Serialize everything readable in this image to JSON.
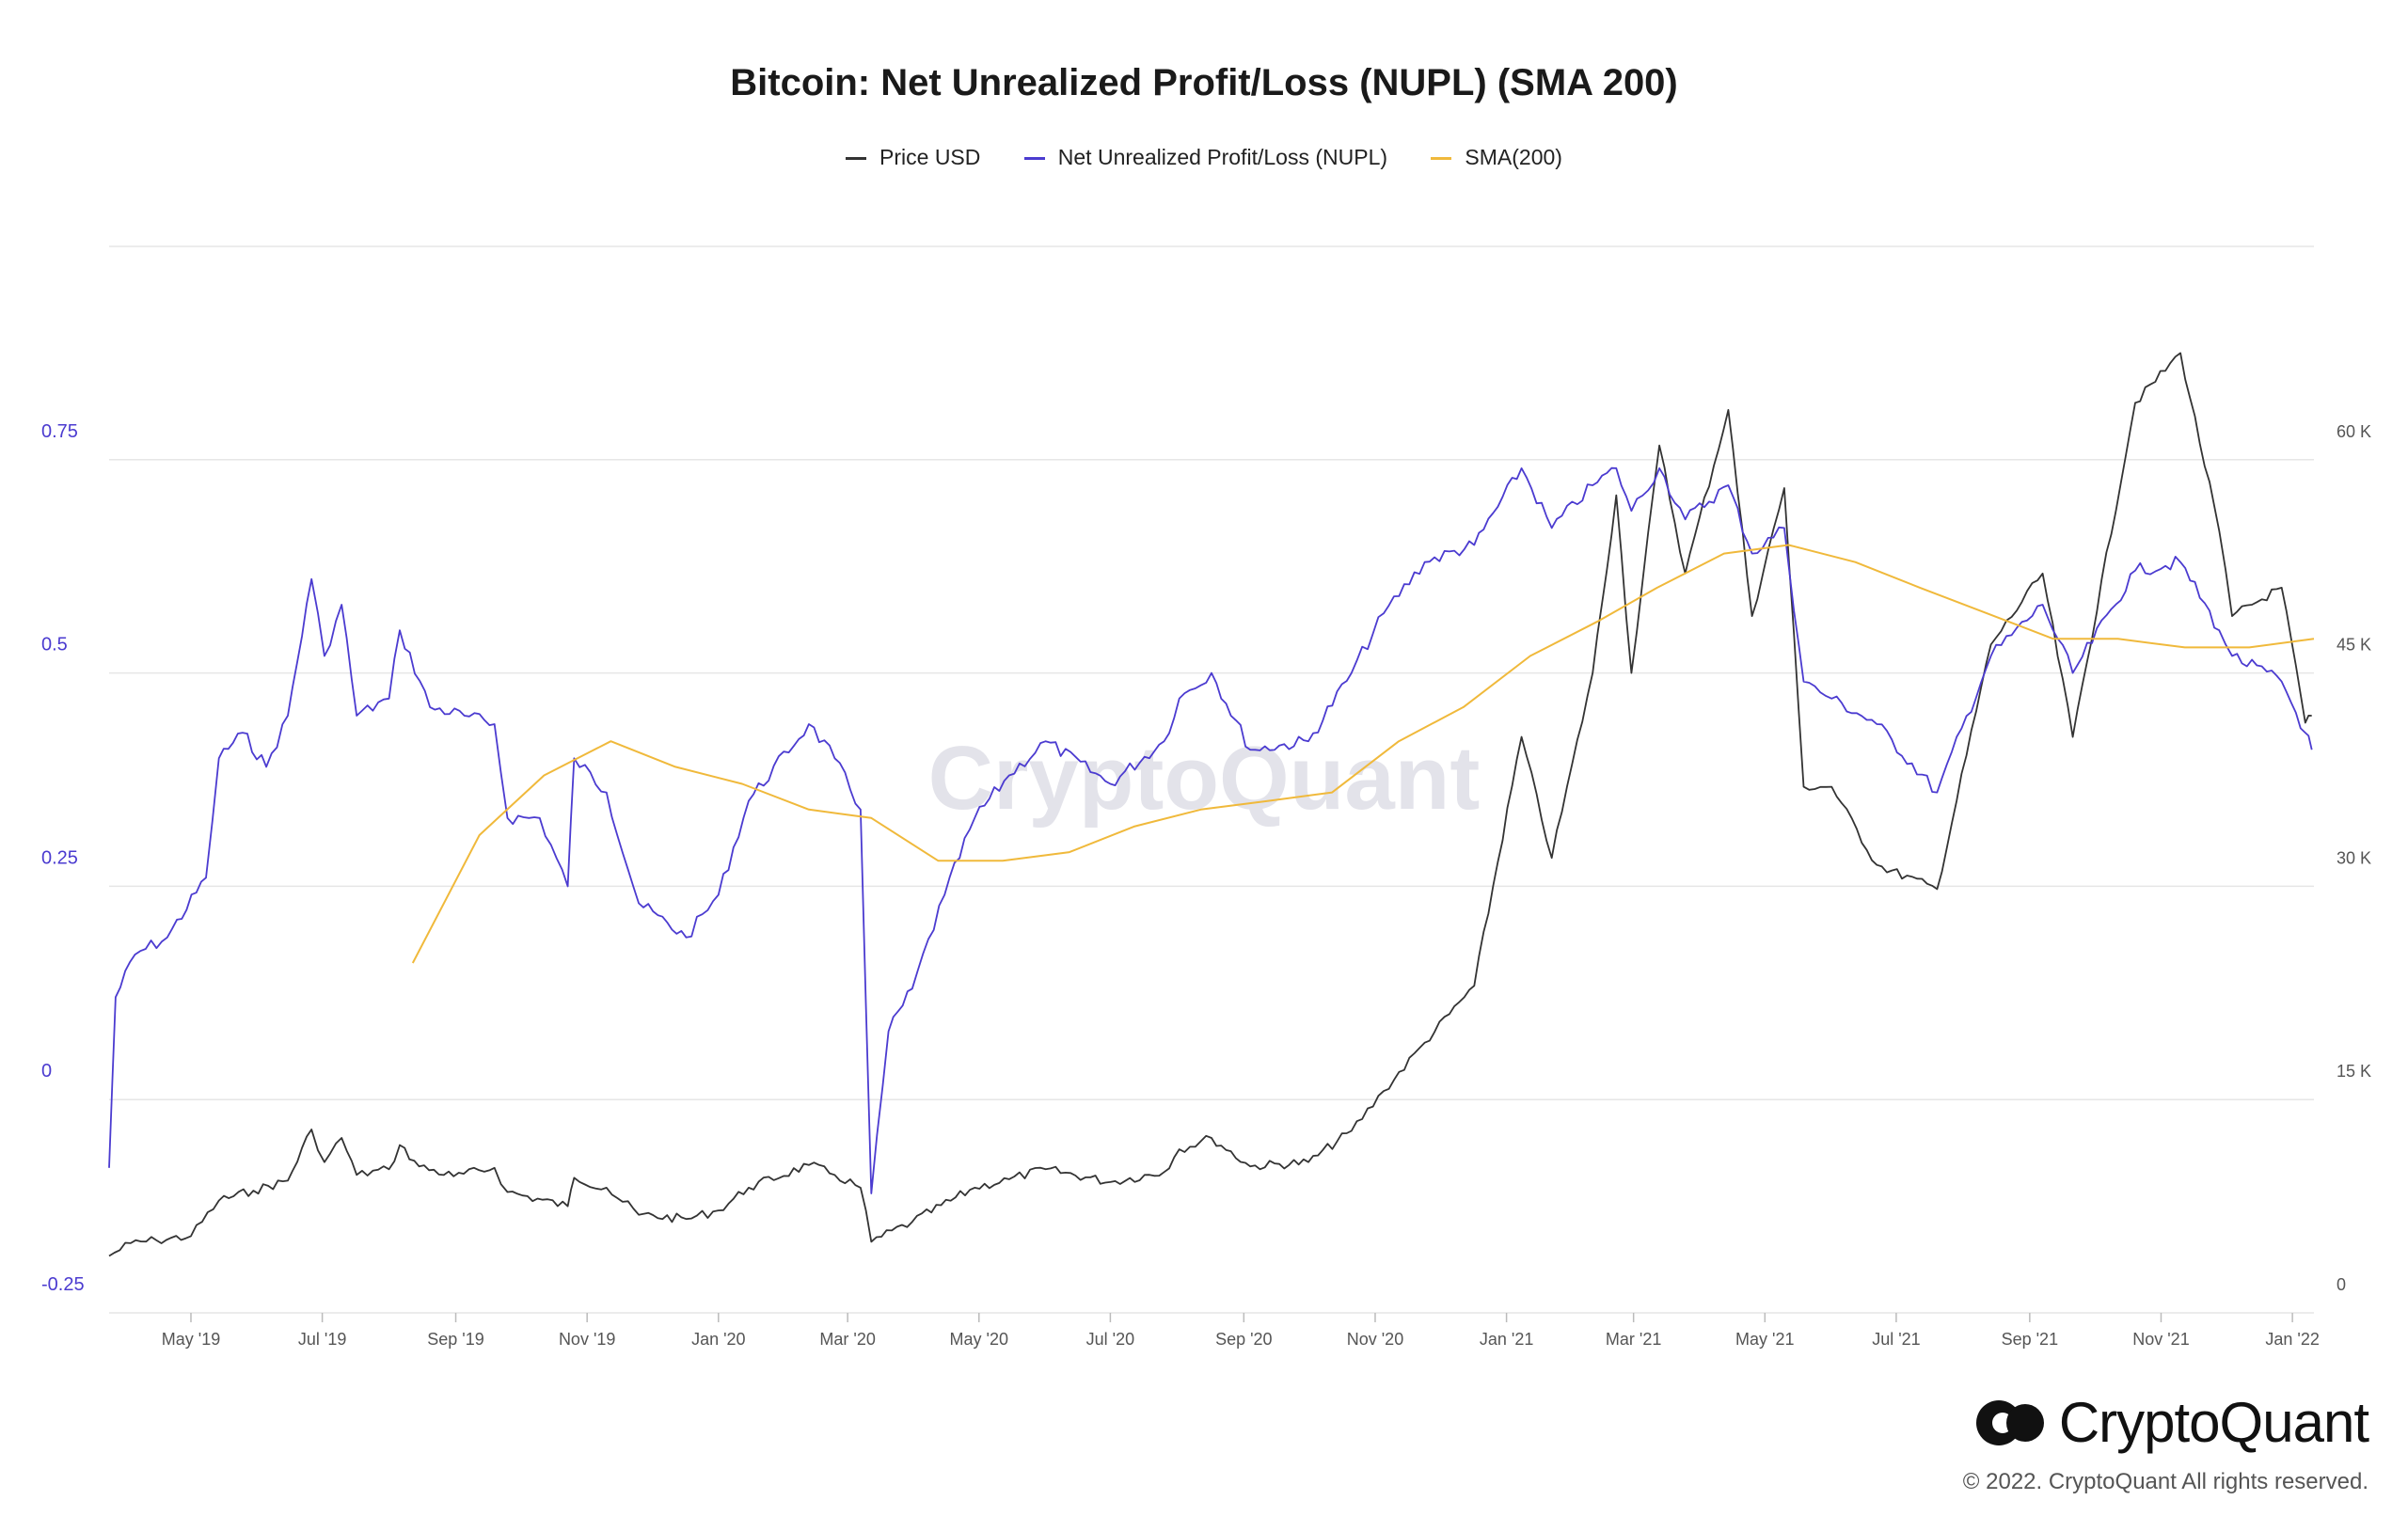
{
  "chart_data": {
    "type": "line",
    "title": "Bitcoin: Net Unrealized Profit/Loss (NUPL) (SMA 200)",
    "watermark": "CryptoQuant",
    "legend": {
      "placement": "top-center",
      "entries": [
        {
          "name": "Price USD",
          "color": "#333333"
        },
        {
          "name": "Net Unrealized Profit/Loss (NUPL)",
          "color": "#4b3bd0"
        },
        {
          "name": "SMA(200)",
          "color": "#f0b93b"
        }
      ]
    },
    "x_axis": {
      "range": [
        "2019-03-24",
        "2022-01-11"
      ],
      "ticks": [
        {
          "label": "May '19",
          "date": "2019-05-01"
        },
        {
          "label": "Jul '19",
          "date": "2019-07-01"
        },
        {
          "label": "Sep '19",
          "date": "2019-09-01"
        },
        {
          "label": "Nov '19",
          "date": "2019-11-01"
        },
        {
          "label": "Jan '20",
          "date": "2020-01-01"
        },
        {
          "label": "Mar '20",
          "date": "2020-03-01"
        },
        {
          "label": "May '20",
          "date": "2020-05-01"
        },
        {
          "label": "Jul '20",
          "date": "2020-07-01"
        },
        {
          "label": "Sep '20",
          "date": "2020-09-01"
        },
        {
          "label": "Nov '20",
          "date": "2020-11-01"
        },
        {
          "label": "Jan '21",
          "date": "2021-01-01"
        },
        {
          "label": "Mar '21",
          "date": "2021-03-01"
        },
        {
          "label": "May '21",
          "date": "2021-05-01"
        },
        {
          "label": "Jul '21",
          "date": "2021-07-01"
        },
        {
          "label": "Sep '21",
          "date": "2021-09-01"
        },
        {
          "label": "Nov '21",
          "date": "2021-11-01"
        },
        {
          "label": "Jan '22",
          "date": "2022-01-01"
        }
      ]
    },
    "y_left": {
      "range": [
        -0.25,
        1.0
      ],
      "ticks": [
        {
          "label": "0.75",
          "value": 0.75
        },
        {
          "label": "0.5",
          "value": 0.5
        },
        {
          "label": "0.25",
          "value": 0.25
        },
        {
          "label": "0",
          "value": 0
        },
        {
          "label": "-0.25",
          "value": -0.25
        }
      ]
    },
    "y_right": {
      "range": [
        0,
        75000
      ],
      "ticks": [
        {
          "label": "60 K",
          "value": 60000
        },
        {
          "label": "45 K",
          "value": 45000
        },
        {
          "label": "30 K",
          "value": 30000
        },
        {
          "label": "15 K",
          "value": 15000
        },
        {
          "label": "0",
          "value": 0
        }
      ]
    },
    "grid": true,
    "series": [
      {
        "name": "Price USD",
        "axis": "right",
        "color": "#333333",
        "points": [
          [
            "2019-03-24",
            4000
          ],
          [
            "2019-04-03",
            4900
          ],
          [
            "2019-04-15",
            5100
          ],
          [
            "2019-05-01",
            5400
          ],
          [
            "2019-05-14",
            7900
          ],
          [
            "2019-05-30",
            8600
          ],
          [
            "2019-06-15",
            9300
          ],
          [
            "2019-06-26",
            12900
          ],
          [
            "2019-07-02",
            10600
          ],
          [
            "2019-07-10",
            12300
          ],
          [
            "2019-07-17",
            9700
          ],
          [
            "2019-08-01",
            10100
          ],
          [
            "2019-08-06",
            11800
          ],
          [
            "2019-08-15",
            10300
          ],
          [
            "2019-08-31",
            9600
          ],
          [
            "2019-09-19",
            10200
          ],
          [
            "2019-09-25",
            8500
          ],
          [
            "2019-10-23",
            7500
          ],
          [
            "2019-10-26",
            9500
          ],
          [
            "2019-11-10",
            8800
          ],
          [
            "2019-11-25",
            6900
          ],
          [
            "2019-12-17",
            6600
          ],
          [
            "2020-01-01",
            7200
          ],
          [
            "2020-01-15",
            8800
          ],
          [
            "2020-02-12",
            10400
          ],
          [
            "2020-02-24",
            9700
          ],
          [
            "2020-03-07",
            8800
          ],
          [
            "2020-03-12",
            5000
          ],
          [
            "2020-03-31",
            6400
          ],
          [
            "2020-04-29",
            8800
          ],
          [
            "2020-05-15",
            9400
          ],
          [
            "2020-06-01",
            10100
          ],
          [
            "2020-07-01",
            9200
          ],
          [
            "2020-07-26",
            9900
          ],
          [
            "2020-08-02",
            11500
          ],
          [
            "2020-08-17",
            12300
          ],
          [
            "2020-09-04",
            10300
          ],
          [
            "2020-10-01",
            10600
          ],
          [
            "2020-10-21",
            12800
          ],
          [
            "2020-11-05",
            15600
          ],
          [
            "2020-11-24",
            19000
          ],
          [
            "2020-12-17",
            23000
          ],
          [
            "2021-01-08",
            40500
          ],
          [
            "2021-01-22",
            32000
          ],
          [
            "2021-02-10",
            45000
          ],
          [
            "2021-02-21",
            57500
          ],
          [
            "2021-02-28",
            45000
          ],
          [
            "2021-03-13",
            61000
          ],
          [
            "2021-03-25",
            52000
          ],
          [
            "2021-04-14",
            63500
          ],
          [
            "2021-04-25",
            49000
          ],
          [
            "2021-05-10",
            58000
          ],
          [
            "2021-05-19",
            37000
          ],
          [
            "2021-06-01",
            37000
          ],
          [
            "2021-06-22",
            31500
          ],
          [
            "2021-07-20",
            29800
          ],
          [
            "2021-08-14",
            47000
          ],
          [
            "2021-09-07",
            52000
          ],
          [
            "2021-09-21",
            40500
          ],
          [
            "2021-10-20",
            64000
          ],
          [
            "2021-11-10",
            67500
          ],
          [
            "2021-11-28",
            55000
          ],
          [
            "2021-12-04",
            49000
          ],
          [
            "2021-12-27",
            51000
          ],
          [
            "2022-01-07",
            41500
          ],
          [
            "2022-01-10",
            42000
          ]
        ]
      },
      {
        "name": "Net Unrealized Profit/Loss (NUPL)",
        "axis": "left",
        "color": "#4b3bd0",
        "points": [
          [
            "2019-03-24",
            -0.08
          ],
          [
            "2019-03-27",
            0.12
          ],
          [
            "2019-04-05",
            0.17
          ],
          [
            "2019-04-20",
            0.19
          ],
          [
            "2019-05-08",
            0.26
          ],
          [
            "2019-05-14",
            0.4
          ],
          [
            "2019-05-25",
            0.43
          ],
          [
            "2019-06-05",
            0.39
          ],
          [
            "2019-06-15",
            0.45
          ],
          [
            "2019-06-26",
            0.61
          ],
          [
            "2019-07-02",
            0.52
          ],
          [
            "2019-07-10",
            0.58
          ],
          [
            "2019-07-17",
            0.45
          ],
          [
            "2019-08-01",
            0.47
          ],
          [
            "2019-08-06",
            0.55
          ],
          [
            "2019-08-20",
            0.46
          ],
          [
            "2019-09-05",
            0.45
          ],
          [
            "2019-09-19",
            0.44
          ],
          [
            "2019-09-25",
            0.33
          ],
          [
            "2019-10-10",
            0.33
          ],
          [
            "2019-10-23",
            0.25
          ],
          [
            "2019-10-26",
            0.4
          ],
          [
            "2019-11-10",
            0.36
          ],
          [
            "2019-11-25",
            0.23
          ],
          [
            "2019-12-17",
            0.19
          ],
          [
            "2020-01-01",
            0.24
          ],
          [
            "2020-01-15",
            0.35
          ],
          [
            "2020-02-12",
            0.44
          ],
          [
            "2020-02-24",
            0.4
          ],
          [
            "2020-03-07",
            0.34
          ],
          [
            "2020-03-12",
            -0.11
          ],
          [
            "2020-03-20",
            0.08
          ],
          [
            "2020-03-31",
            0.13
          ],
          [
            "2020-04-15",
            0.24
          ],
          [
            "2020-04-29",
            0.33
          ],
          [
            "2020-05-15",
            0.38
          ],
          [
            "2020-06-01",
            0.42
          ],
          [
            "2020-07-01",
            0.37
          ],
          [
            "2020-07-26",
            0.42
          ],
          [
            "2020-08-02",
            0.47
          ],
          [
            "2020-08-17",
            0.5
          ],
          [
            "2020-09-04",
            0.41
          ],
          [
            "2020-10-01",
            0.42
          ],
          [
            "2020-10-21",
            0.5
          ],
          [
            "2020-11-05",
            0.57
          ],
          [
            "2020-11-24",
            0.63
          ],
          [
            "2020-12-17",
            0.65
          ],
          [
            "2021-01-08",
            0.74
          ],
          [
            "2021-01-22",
            0.67
          ],
          [
            "2021-02-10",
            0.72
          ],
          [
            "2021-02-21",
            0.74
          ],
          [
            "2021-02-28",
            0.69
          ],
          [
            "2021-03-13",
            0.74
          ],
          [
            "2021-03-25",
            0.68
          ],
          [
            "2021-04-14",
            0.72
          ],
          [
            "2021-04-25",
            0.64
          ],
          [
            "2021-05-10",
            0.67
          ],
          [
            "2021-05-19",
            0.49
          ],
          [
            "2021-06-01",
            0.47
          ],
          [
            "2021-06-22",
            0.44
          ],
          [
            "2021-07-20",
            0.36
          ],
          [
            "2021-08-14",
            0.52
          ],
          [
            "2021-09-07",
            0.58
          ],
          [
            "2021-09-21",
            0.5
          ],
          [
            "2021-10-20",
            0.62
          ],
          [
            "2021-11-10",
            0.63
          ],
          [
            "2021-11-28",
            0.55
          ],
          [
            "2021-12-04",
            0.52
          ],
          [
            "2021-12-27",
            0.49
          ],
          [
            "2022-01-07",
            0.43
          ],
          [
            "2022-01-10",
            0.41
          ]
        ]
      },
      {
        "name": "SMA(200)",
        "axis": "left",
        "color": "#f0b93b",
        "points": [
          [
            "2019-08-12",
            0.16
          ],
          [
            "2019-09-12",
            0.31
          ],
          [
            "2019-10-12",
            0.38
          ],
          [
            "2019-11-12",
            0.42
          ],
          [
            "2019-12-12",
            0.39
          ],
          [
            "2020-01-12",
            0.37
          ],
          [
            "2020-02-12",
            0.34
          ],
          [
            "2020-03-12",
            0.33
          ],
          [
            "2020-04-12",
            0.28
          ],
          [
            "2020-05-12",
            0.28
          ],
          [
            "2020-06-12",
            0.29
          ],
          [
            "2020-07-12",
            0.32
          ],
          [
            "2020-08-12",
            0.34
          ],
          [
            "2020-09-12",
            0.35
          ],
          [
            "2020-10-12",
            0.36
          ],
          [
            "2020-11-12",
            0.42
          ],
          [
            "2020-12-12",
            0.46
          ],
          [
            "2021-01-12",
            0.52
          ],
          [
            "2021-02-12",
            0.56
          ],
          [
            "2021-03-12",
            0.6
          ],
          [
            "2021-04-12",
            0.64
          ],
          [
            "2021-05-12",
            0.65
          ],
          [
            "2021-06-12",
            0.63
          ],
          [
            "2021-07-12",
            0.6
          ],
          [
            "2021-08-12",
            0.57
          ],
          [
            "2021-09-12",
            0.54
          ],
          [
            "2021-10-12",
            0.54
          ],
          [
            "2021-11-12",
            0.53
          ],
          [
            "2021-12-12",
            0.53
          ],
          [
            "2022-01-11",
            0.54
          ]
        ]
      }
    ]
  },
  "brand": {
    "name": "CryptoQuant",
    "copyright": "© 2022. CryptoQuant All rights reserved."
  }
}
